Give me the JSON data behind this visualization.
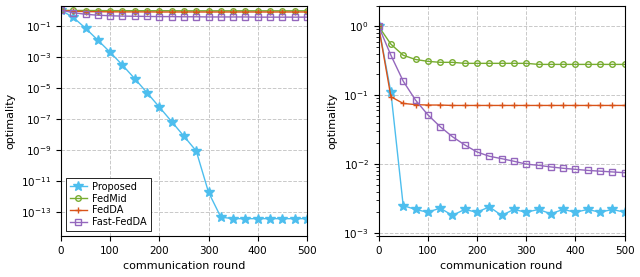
{
  "xlabel": "communication round",
  "ylabel": "optimality",
  "x_ticks": [
    0,
    100,
    200,
    300,
    400,
    500
  ],
  "colors": {
    "proposed": "#4DBEEE",
    "fedmid": "#77AC30",
    "fedda": "#D95319",
    "fast_fedda": "#9467BD"
  },
  "legend_labels": [
    "Proposed",
    "FedMid",
    "FedDA",
    "Fast-FedDA"
  ],
  "plot1": {
    "ylim_bottom": 3e-15,
    "ylim_top": 2.0,
    "proposed_x": [
      0,
      25,
      50,
      75,
      100,
      125,
      150,
      175,
      200,
      225,
      250,
      275,
      300,
      325,
      350,
      375,
      400,
      425,
      450,
      475,
      500
    ],
    "proposed_y": [
      1.0,
      0.35,
      0.07,
      0.012,
      0.002,
      0.0003,
      4e-05,
      5e-06,
      6e-07,
      7e-08,
      8e-09,
      9e-10,
      2e-12,
      5e-14,
      4e-14,
      4e-14,
      4e-14,
      4e-14,
      4e-14,
      4e-14,
      4e-14
    ],
    "fedmid_x": [
      0,
      25,
      50,
      75,
      100,
      125,
      150,
      175,
      200,
      225,
      250,
      275,
      300,
      325,
      350,
      375,
      400,
      425,
      450,
      475,
      500
    ],
    "fedmid_y": [
      1.0,
      0.97,
      0.96,
      0.95,
      0.94,
      0.94,
      0.93,
      0.93,
      0.93,
      0.93,
      0.92,
      0.92,
      0.92,
      0.92,
      0.92,
      0.92,
      0.92,
      0.92,
      0.92,
      0.92,
      0.92
    ],
    "fedda_x": [
      0,
      25,
      50,
      75,
      100,
      125,
      150,
      175,
      200,
      225,
      250,
      275,
      300,
      325,
      350,
      375,
      400,
      425,
      450,
      475,
      500
    ],
    "fedda_y": [
      1.0,
      0.86,
      0.82,
      0.8,
      0.79,
      0.78,
      0.78,
      0.78,
      0.77,
      0.77,
      0.77,
      0.77,
      0.77,
      0.77,
      0.77,
      0.77,
      0.77,
      0.77,
      0.77,
      0.77,
      0.77
    ],
    "fast_fedda_x": [
      0,
      25,
      50,
      75,
      100,
      125,
      150,
      175,
      200,
      225,
      250,
      275,
      300,
      325,
      350,
      375,
      400,
      425,
      450,
      475,
      500
    ],
    "fast_fedda_y": [
      1.0,
      0.7,
      0.55,
      0.48,
      0.44,
      0.42,
      0.41,
      0.4,
      0.39,
      0.39,
      0.38,
      0.38,
      0.37,
      0.37,
      0.37,
      0.37,
      0.36,
      0.36,
      0.36,
      0.36,
      0.36
    ]
  },
  "plot2": {
    "ylim_bottom": 0.0009,
    "ylim_top": 2.0,
    "proposed_x": [
      0,
      25,
      50,
      75,
      100,
      125,
      150,
      175,
      200,
      225,
      250,
      275,
      300,
      325,
      350,
      375,
      400,
      425,
      450,
      475,
      500
    ],
    "proposed_y": [
      1.0,
      0.11,
      0.0025,
      0.0022,
      0.002,
      0.0023,
      0.0018,
      0.0022,
      0.002,
      0.0024,
      0.0018,
      0.0022,
      0.002,
      0.0022,
      0.0019,
      0.0022,
      0.002,
      0.0022,
      0.002,
      0.0022,
      0.002
    ],
    "fedmid_x": [
      0,
      25,
      50,
      75,
      100,
      125,
      150,
      175,
      200,
      225,
      250,
      275,
      300,
      325,
      350,
      375,
      400,
      425,
      450,
      475,
      500
    ],
    "fedmid_y": [
      1.0,
      0.55,
      0.38,
      0.33,
      0.31,
      0.3,
      0.3,
      0.29,
      0.29,
      0.29,
      0.29,
      0.29,
      0.29,
      0.28,
      0.28,
      0.28,
      0.28,
      0.28,
      0.28,
      0.28,
      0.28
    ],
    "fedda_x": [
      0,
      25,
      50,
      75,
      100,
      125,
      150,
      175,
      200,
      225,
      250,
      275,
      300,
      325,
      350,
      375,
      400,
      425,
      450,
      475,
      500
    ],
    "fedda_y": [
      1.0,
      0.095,
      0.076,
      0.073,
      0.072,
      0.072,
      0.071,
      0.071,
      0.071,
      0.071,
      0.071,
      0.071,
      0.071,
      0.071,
      0.071,
      0.071,
      0.071,
      0.071,
      0.071,
      0.071,
      0.071
    ],
    "fast_fedda_x": [
      0,
      25,
      50,
      75,
      100,
      125,
      150,
      175,
      200,
      225,
      250,
      275,
      300,
      325,
      350,
      375,
      400,
      425,
      450,
      475,
      500
    ],
    "fast_fedda_y": [
      1.0,
      0.38,
      0.16,
      0.085,
      0.052,
      0.035,
      0.025,
      0.019,
      0.015,
      0.013,
      0.012,
      0.011,
      0.01,
      0.0096,
      0.0091,
      0.0087,
      0.0084,
      0.0081,
      0.0079,
      0.0077,
      0.0075
    ]
  },
  "linewidth": 1.0,
  "markersize_star": 7,
  "markersize_circle": 4,
  "markersize_plus": 5,
  "markersize_square": 4
}
